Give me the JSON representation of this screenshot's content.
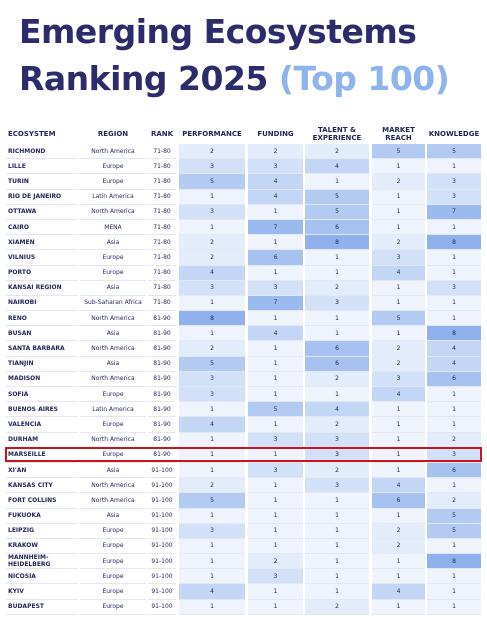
{
  "title": {
    "line1": "Emerging Ecosystems",
    "line2_main": "Ranking 2025 ",
    "line2_accent": "(Top 100)"
  },
  "headers": {
    "ecosystem": "ECOSYSTEM",
    "region": "REGION",
    "rank": "RANK",
    "performance": "PERFORMANCE",
    "funding": "FUNDING",
    "talent": "TALENT & EXPERIENCE",
    "market": "MARKET REACH",
    "knowledge": "KNOWLEDGE"
  },
  "colors": {
    "title": "#2c2c6c",
    "accent": "#8db4ee",
    "highlight_border": "#c8141e",
    "scale": [
      "#eef3fc",
      "#e3ecfb",
      "#d3e1f8",
      "#c3d6f6",
      "#b3cbf3",
      "#a7c2f1",
      "#9bbaef",
      "#8fb1ed"
    ]
  },
  "highlighted_row": "BUSAN",
  "rows": [
    {
      "ecosystem": "RICHMOND",
      "region": "North America",
      "rank": "71-80",
      "scores": [
        2,
        2,
        2,
        5,
        5
      ]
    },
    {
      "ecosystem": "LILLE",
      "region": "Europe",
      "rank": "71-80",
      "scores": [
        3,
        3,
        4,
        1,
        1
      ]
    },
    {
      "ecosystem": "TURIN",
      "region": "Europe",
      "rank": "71-80",
      "scores": [
        5,
        4,
        1,
        2,
        3
      ]
    },
    {
      "ecosystem": "RIO DE JANEIRO",
      "region": "Latin America",
      "rank": "71-80",
      "scores": [
        1,
        4,
        5,
        1,
        3
      ]
    },
    {
      "ecosystem": "OTTAWA",
      "region": "North America",
      "rank": "71-80",
      "scores": [
        3,
        1,
        5,
        1,
        7
      ]
    },
    {
      "ecosystem": "CAIRO",
      "region": "MENA",
      "rank": "71-80",
      "scores": [
        1,
        7,
        6,
        1,
        1
      ]
    },
    {
      "ecosystem": "XIAMEN",
      "region": "Asia",
      "rank": "71-80",
      "scores": [
        2,
        1,
        8,
        2,
        8
      ]
    },
    {
      "ecosystem": "VILNIUS",
      "region": "Europe",
      "rank": "71-80",
      "scores": [
        2,
        6,
        1,
        3,
        1
      ]
    },
    {
      "ecosystem": "PORTO",
      "region": "Europe",
      "rank": "71-80",
      "scores": [
        4,
        1,
        1,
        4,
        1
      ]
    },
    {
      "ecosystem": "KANSAI REGION",
      "region": "Asia",
      "rank": "71-80",
      "scores": [
        3,
        3,
        2,
        1,
        3
      ]
    },
    {
      "ecosystem": "NAIROBI",
      "region": "Sub-Saharan Africa",
      "rank": "71-80",
      "scores": [
        1,
        7,
        3,
        1,
        1
      ]
    },
    {
      "ecosystem": "RENO",
      "region": "North America",
      "rank": "81-90",
      "scores": [
        8,
        1,
        1,
        5,
        1
      ]
    },
    {
      "ecosystem": "BUSAN",
      "region": "Asia",
      "rank": "81-90",
      "scores": [
        1,
        4,
        1,
        1,
        8
      ]
    },
    {
      "ecosystem": "SANTA BARBARA",
      "region": "North America",
      "rank": "81-90",
      "scores": [
        2,
        1,
        6,
        2,
        4
      ]
    },
    {
      "ecosystem": "TIANJIN",
      "region": "Asia",
      "rank": "81-90",
      "scores": [
        5,
        1,
        6,
        2,
        4
      ]
    },
    {
      "ecosystem": "MADISON",
      "region": "North America",
      "rank": "81-90",
      "scores": [
        3,
        1,
        2,
        3,
        6
      ]
    },
    {
      "ecosystem": "SOFIA",
      "region": "Europe",
      "rank": "81-90",
      "scores": [
        3,
        1,
        1,
        4,
        1
      ]
    },
    {
      "ecosystem": "BUENOS AIRES",
      "region": "Latin America",
      "rank": "81-90",
      "scores": [
        1,
        5,
        4,
        1,
        1
      ]
    },
    {
      "ecosystem": "VALENCIA",
      "region": "Europe",
      "rank": "81-90",
      "scores": [
        4,
        1,
        2,
        1,
        1
      ]
    },
    {
      "ecosystem": "DURHAM",
      "region": "North America",
      "rank": "81-90",
      "scores": [
        1,
        3,
        3,
        1,
        2
      ]
    },
    {
      "ecosystem": "MARSEILLE",
      "region": "Europe",
      "rank": "81-90",
      "scores": [
        1,
        1,
        3,
        1,
        3
      ]
    },
    {
      "ecosystem": "XI'AN",
      "region": "Asia",
      "rank": "91-100",
      "scores": [
        1,
        3,
        2,
        1,
        6
      ]
    },
    {
      "ecosystem": "KANSAS CITY",
      "region": "North America",
      "rank": "91-100",
      "scores": [
        2,
        1,
        3,
        4,
        1
      ]
    },
    {
      "ecosystem": "FORT COLLINS",
      "region": "North America",
      "rank": "91-100",
      "scores": [
        5,
        1,
        1,
        6,
        2
      ]
    },
    {
      "ecosystem": "FUKUOKA",
      "region": "Asia",
      "rank": "91-100",
      "scores": [
        1,
        1,
        1,
        1,
        5
      ]
    },
    {
      "ecosystem": "LEIPZIG",
      "region": "Europe",
      "rank": "91-100",
      "scores": [
        3,
        1,
        1,
        2,
        5
      ]
    },
    {
      "ecosystem": "KRAKOW",
      "region": "Europe",
      "rank": "91-100",
      "scores": [
        1,
        1,
        1,
        2,
        1
      ]
    },
    {
      "ecosystem": "MANNHEIM-HEIDELBERG",
      "region": "Europe",
      "rank": "91-100",
      "scores": [
        1,
        2,
        1,
        1,
        8
      ]
    },
    {
      "ecosystem": "NICOSIA",
      "region": "Europe",
      "rank": "91-100",
      "scores": [
        1,
        3,
        1,
        1,
        1
      ]
    },
    {
      "ecosystem": "KYIV",
      "region": "Europe",
      "rank": "91-100",
      "scores": [
        4,
        1,
        1,
        4,
        1
      ]
    },
    {
      "ecosystem": "BUDAPEST",
      "region": "Europe",
      "rank": "91-100",
      "scores": [
        1,
        1,
        2,
        1,
        1
      ]
    }
  ]
}
